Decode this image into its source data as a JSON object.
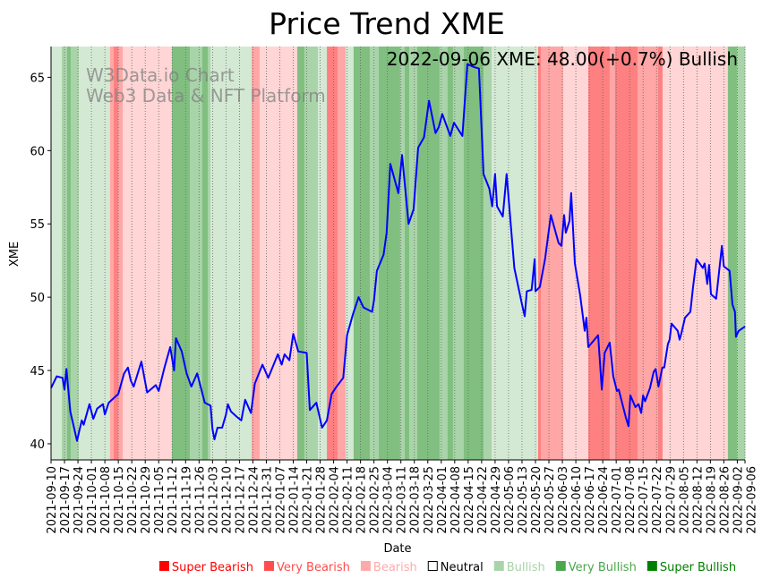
{
  "chart_data": {
    "type": "line",
    "title": "Price Trend XME",
    "xlabel": "Date",
    "ylabel": "XME",
    "ylim": [
      38.9,
      67.1
    ],
    "yticks": [
      40,
      45,
      50,
      55,
      60,
      65
    ],
    "x_unit": "days since 2021-09-10",
    "xlim": [
      0,
      361
    ],
    "annotation": "2022-09-06 XME: 48.00(+0.7%) Bullish",
    "watermark": [
      "W3Data.io Chart",
      "Web3 Data & NFT Platform"
    ],
    "xtick_labels": [
      "2021-09-10",
      "2021-09-17",
      "2021-09-24",
      "2021-10-01",
      "2021-10-08",
      "2021-10-15",
      "2021-10-22",
      "2021-10-29",
      "2021-11-05",
      "2021-11-12",
      "2021-11-19",
      "2021-11-26",
      "2021-12-03",
      "2021-12-10",
      "2021-12-17",
      "2021-12-24",
      "2021-12-31",
      "2022-01-07",
      "2022-01-14",
      "2022-01-21",
      "2022-01-28",
      "2022-02-04",
      "2022-02-11",
      "2022-02-18",
      "2022-02-25",
      "2022-03-04",
      "2022-03-11",
      "2022-03-18",
      "2022-03-25",
      "2022-04-01",
      "2022-04-08",
      "2022-04-15",
      "2022-04-22",
      "2022-04-29",
      "2022-05-06",
      "2022-05-13",
      "2022-05-20",
      "2022-05-27",
      "2022-06-03",
      "2022-06-10",
      "2022-06-17",
      "2022-06-24",
      "2022-07-01",
      "2022-07-08",
      "2022-07-15",
      "2022-07-22",
      "2022-07-29",
      "2022-08-05",
      "2022-08-12",
      "2022-08-19",
      "2022-08-26",
      "2022-09-02",
      "2022-09-06"
    ],
    "xtick_days": [
      0,
      7,
      14,
      21,
      28,
      35,
      42,
      49,
      56,
      63,
      70,
      77,
      84,
      91,
      98,
      105,
      112,
      119,
      126,
      133,
      140,
      147,
      154,
      161,
      168,
      175,
      182,
      189,
      196,
      203,
      210,
      217,
      224,
      231,
      238,
      245,
      252,
      259,
      266,
      273,
      280,
      287,
      294,
      301,
      308,
      315,
      322,
      329,
      336,
      343,
      350,
      357,
      361
    ],
    "series": [
      {
        "name": "XME",
        "color": "#0000ff",
        "points": [
          [
            0,
            43.8
          ],
          [
            3,
            44.6
          ],
          [
            6,
            44.5
          ],
          [
            7,
            43.7
          ],
          [
            8,
            45.1
          ],
          [
            10,
            42.2
          ],
          [
            13.5,
            40.2
          ],
          [
            16,
            41.6
          ],
          [
            17,
            41.3
          ],
          [
            20,
            42.7
          ],
          [
            22,
            41.7
          ],
          [
            24,
            42.4
          ],
          [
            27,
            42.7
          ],
          [
            28,
            42
          ],
          [
            30,
            42.8
          ],
          [
            35,
            43.4
          ],
          [
            38,
            44.8
          ],
          [
            40,
            45.2
          ],
          [
            41.5,
            44.3
          ],
          [
            43,
            43.9
          ],
          [
            47,
            45.6
          ],
          [
            50,
            43.5
          ],
          [
            54.5,
            44
          ],
          [
            56,
            43.6
          ],
          [
            59,
            45.2
          ],
          [
            62,
            46.6
          ],
          [
            64,
            45
          ],
          [
            65,
            47.2
          ],
          [
            68,
            46.3
          ],
          [
            70.5,
            44.8
          ],
          [
            73,
            43.9
          ],
          [
            76,
            44.8
          ],
          [
            80,
            42.8
          ],
          [
            83,
            42.6
          ],
          [
            84,
            41
          ],
          [
            85,
            40.3
          ],
          [
            86.6,
            41.1
          ],
          [
            89,
            41.1
          ],
          [
            91,
            42
          ],
          [
            92,
            42.7
          ],
          [
            93.6,
            42.2
          ],
          [
            97,
            41.8
          ],
          [
            99,
            41.6
          ],
          [
            101,
            43
          ],
          [
            104,
            42.1
          ],
          [
            106,
            44.1
          ],
          [
            110,
            45.4
          ],
          [
            113,
            44.5
          ],
          [
            118,
            46.1
          ],
          [
            120,
            45.4
          ],
          [
            121.5,
            46.1
          ],
          [
            124,
            45.7
          ],
          [
            126,
            47.5
          ],
          [
            128.6,
            46.3
          ],
          [
            133,
            46.2
          ],
          [
            134.6,
            42.3
          ],
          [
            138,
            42.8
          ],
          [
            141,
            41.1
          ],
          [
            143.5,
            41.6
          ],
          [
            146,
            43.4
          ],
          [
            148,
            43.8
          ],
          [
            152,
            44.5
          ],
          [
            154,
            47.4
          ],
          [
            157,
            48.8
          ],
          [
            160,
            50
          ],
          [
            162.5,
            49.3
          ],
          [
            167,
            49
          ],
          [
            168,
            49.8
          ],
          [
            169.5,
            51.8
          ],
          [
            173,
            52.9
          ],
          [
            174.6,
            54.4
          ],
          [
            176.5,
            59.1
          ],
          [
            180.7,
            57.1
          ],
          [
            182.6,
            59.7
          ],
          [
            186,
            55
          ],
          [
            188.6,
            56
          ],
          [
            191,
            60.2
          ],
          [
            194,
            60.9
          ],
          [
            196.6,
            63.4
          ],
          [
            200,
            61.2
          ],
          [
            201.7,
            61.6
          ],
          [
            203.5,
            62.5
          ],
          [
            207.7,
            61
          ],
          [
            209.6,
            61.9
          ],
          [
            214,
            61
          ],
          [
            216.6,
            65.9
          ],
          [
            220,
            65.7
          ],
          [
            222.6,
            65.6
          ],
          [
            225,
            58.4
          ],
          [
            228,
            57.4
          ],
          [
            229.5,
            56.2
          ],
          [
            231,
            58.4
          ],
          [
            232,
            56.2
          ],
          [
            235,
            55.5
          ],
          [
            237,
            58.4
          ],
          [
            241,
            52
          ],
          [
            245,
            49.5
          ],
          [
            246.4,
            48.7
          ],
          [
            247.5,
            50.4
          ],
          [
            250,
            50.5
          ],
          [
            251.6,
            52.6
          ],
          [
            252,
            50.4
          ],
          [
            254.3,
            50.7
          ],
          [
            257,
            52.6
          ],
          [
            260,
            55.6
          ],
          [
            264,
            53.7
          ],
          [
            265.5,
            53.5
          ],
          [
            266.9,
            55.6
          ],
          [
            267.8,
            54.4
          ],
          [
            269.7,
            55.2
          ],
          [
            270.6,
            57.1
          ],
          [
            272.5,
            52.3
          ],
          [
            275.3,
            50.1
          ],
          [
            277.6,
            47.7
          ],
          [
            278.5,
            48.6
          ],
          [
            279.5,
            46.6
          ],
          [
            284.6,
            47.4
          ],
          [
            286.5,
            43.7
          ],
          [
            288,
            46.2
          ],
          [
            290.6,
            46.9
          ],
          [
            292.5,
            44.6
          ],
          [
            294.4,
            43.6
          ],
          [
            295.3,
            43.7
          ],
          [
            299,
            41.8
          ],
          [
            300.4,
            41.2
          ],
          [
            301.4,
            43.3
          ],
          [
            304,
            42.5
          ],
          [
            305.6,
            42.7
          ],
          [
            307,
            42.1
          ],
          [
            308,
            43.3
          ],
          [
            309,
            42.9
          ],
          [
            311.6,
            43.8
          ],
          [
            313.5,
            44.9
          ],
          [
            314.5,
            45.1
          ],
          [
            316,
            43.9
          ],
          [
            318,
            45.2
          ],
          [
            319,
            45.2
          ],
          [
            320.9,
            46.8
          ],
          [
            321.8,
            47.1
          ],
          [
            322.8,
            48.2
          ],
          [
            326,
            47.7
          ],
          [
            327,
            47.1
          ],
          [
            328,
            47.6
          ],
          [
            329.8,
            48.6
          ],
          [
            332.6,
            49
          ],
          [
            334,
            50.7
          ],
          [
            335.8,
            52.6
          ],
          [
            339,
            52
          ],
          [
            340,
            52.3
          ],
          [
            341.4,
            50.9
          ],
          [
            342.3,
            52.2
          ],
          [
            343.3,
            50.2
          ],
          [
            346,
            49.9
          ],
          [
            349,
            53.5
          ],
          [
            350,
            52.1
          ],
          [
            353,
            51.8
          ],
          [
            354.5,
            49.5
          ],
          [
            355.8,
            49
          ],
          [
            356.3,
            47.3
          ],
          [
            357.7,
            47.7
          ],
          [
            361,
            48
          ]
        ]
      }
    ],
    "sentiment_bands": [
      [
        0,
        5.6,
        1
      ],
      [
        5.6,
        8.4,
        2
      ],
      [
        8.4,
        10.2,
        3
      ],
      [
        10.2,
        14.4,
        2
      ],
      [
        14.4,
        30.7,
        1
      ],
      [
        30.7,
        32.6,
        -2
      ],
      [
        32.6,
        34.9,
        -3
      ],
      [
        34.9,
        37.3,
        -2
      ],
      [
        37.3,
        62.9,
        -1
      ],
      [
        62.9,
        72.2,
        3
      ],
      [
        72.2,
        78.7,
        2
      ],
      [
        78.7,
        81.5,
        3
      ],
      [
        81.5,
        82.9,
        2
      ],
      [
        82.9,
        104.3,
        1
      ],
      [
        104.3,
        108.5,
        -2
      ],
      [
        108.5,
        128.1,
        -1
      ],
      [
        128.1,
        131.8,
        3
      ],
      [
        131.8,
        138.8,
        2
      ],
      [
        138.8,
        143.5,
        1
      ],
      [
        143.5,
        149,
        -3
      ],
      [
        149,
        153.2,
        -2
      ],
      [
        153.2,
        157.4,
        1
      ],
      [
        157.4,
        165.8,
        3
      ],
      [
        165.8,
        170.5,
        2
      ],
      [
        170.5,
        181.6,
        3
      ],
      [
        181.6,
        184,
        2
      ],
      [
        184,
        186.3,
        3
      ],
      [
        186.3,
        190.5,
        2
      ],
      [
        190.5,
        202.1,
        3
      ],
      [
        202.1,
        206.3,
        2
      ],
      [
        206.3,
        209.1,
        3
      ],
      [
        209.1,
        214.7,
        2
      ],
      [
        214.7,
        225,
        3
      ],
      [
        225,
        229.2,
        2
      ],
      [
        229.2,
        253.4,
        1
      ],
      [
        253.4,
        254.8,
        -3
      ],
      [
        254.8,
        266.4,
        -2
      ],
      [
        266.4,
        279.5,
        -1
      ],
      [
        279.5,
        290.6,
        -3
      ],
      [
        290.6,
        293.4,
        -2
      ],
      [
        293.4,
        305.1,
        -3
      ],
      [
        305.1,
        307.9,
        -2
      ],
      [
        307.9,
        315.8,
        -2
      ],
      [
        315.8,
        318.1,
        -3
      ],
      [
        318.1,
        352.1,
        -1
      ],
      [
        352.1,
        356.8,
        3
      ],
      [
        356.8,
        361,
        2
      ]
    ],
    "band_colors": {
      "-3": "#ff8080",
      "-2": "#ffa6a6",
      "-1": "#ffd5d5",
      "1": "#d4e9d4",
      "2": "#a9d4a9",
      "3": "#80bf80"
    },
    "legend": [
      {
        "label": "Super Bearish",
        "color": "#ff0000",
        "text_color": "#ff0000"
      },
      {
        "label": "Very Bearish",
        "color": "#ff4c4c",
        "text_color": "#ff4c4c"
      },
      {
        "label": "Bearish",
        "color": "#ffaaaa",
        "text_color": "#ffaaaa"
      },
      {
        "label": "Neutral",
        "color": "none",
        "text_color": "#000000"
      },
      {
        "label": "Bullish",
        "color": "#a9d4a9",
        "text_color": "#a9d4a9"
      },
      {
        "label": "Very Bullish",
        "color": "#4ca64c",
        "text_color": "#4ca64c"
      },
      {
        "label": "Super Bullish",
        "color": "#008000",
        "text_color": "#008000"
      }
    ],
    "legend_placement": "bottom"
  }
}
